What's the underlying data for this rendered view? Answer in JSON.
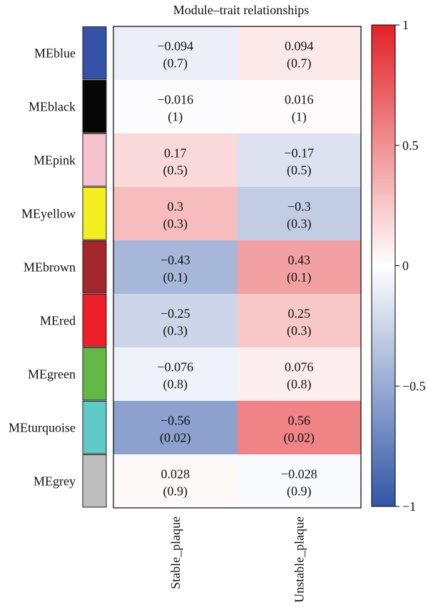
{
  "chart_data": {
    "type": "heatmap",
    "title": "Module–trait relationships",
    "columns": [
      "Stable_plaque",
      "Unstable_plaque"
    ],
    "rows": [
      {
        "label": "MEblue",
        "module_color": "#3452a6",
        "values": [
          -0.094,
          0.094
        ],
        "value_labels": [
          "−0.094",
          "0.094"
        ],
        "pvalue_labels": [
          "(0.7)",
          "(0.7)"
        ]
      },
      {
        "label": "MEblack",
        "module_color": "#060606",
        "values": [
          -0.016,
          0.016
        ],
        "value_labels": [
          "−0.016",
          "0.016"
        ],
        "pvalue_labels": [
          "(1)",
          "(1)"
        ]
      },
      {
        "label": "MEpink",
        "module_color": "#f7c2cf",
        "values": [
          0.17,
          -0.17
        ],
        "value_labels": [
          "0.17",
          "−0.17"
        ],
        "pvalue_labels": [
          "(0.5)",
          "(0.5)"
        ]
      },
      {
        "label": "MEyellow",
        "module_color": "#f2ee1f",
        "values": [
          0.3,
          -0.3
        ],
        "value_labels": [
          "0.3",
          "−0.3"
        ],
        "pvalue_labels": [
          "(0.3)",
          "(0.3)"
        ]
      },
      {
        "label": "MEbrown",
        "module_color": "#a2282d",
        "values": [
          -0.43,
          0.43
        ],
        "value_labels": [
          "−0.43",
          "0.43"
        ],
        "pvalue_labels": [
          "(0.1)",
          "(0.1)"
        ]
      },
      {
        "label": "MEred",
        "module_color": "#ec1f2b",
        "values": [
          -0.25,
          0.25
        ],
        "value_labels": [
          "−0.25",
          "0.25"
        ],
        "pvalue_labels": [
          "(0.3)",
          "(0.3)"
        ]
      },
      {
        "label": "MEgreen",
        "module_color": "#64b946",
        "values": [
          -0.076,
          0.076
        ],
        "value_labels": [
          "−0.076",
          "0.076"
        ],
        "pvalue_labels": [
          "(0.8)",
          "(0.8)"
        ]
      },
      {
        "label": "MEturquoise",
        "module_color": "#5fcac7",
        "values": [
          -0.56,
          0.56
        ],
        "value_labels": [
          "−0.56",
          "0.56"
        ],
        "pvalue_labels": [
          "(0.02)",
          "(0.02)"
        ]
      },
      {
        "label": "MEgrey",
        "module_color": "#bebebe",
        "values": [
          0.028,
          -0.028
        ],
        "value_labels": [
          "0.028",
          "−0.028"
        ],
        "pvalue_labels": [
          "(0.9)",
          "(0.9)"
        ]
      }
    ],
    "colorscale": {
      "min": -1,
      "max": 1,
      "low_color": "#3257a6",
      "mid_color": "#ffffff",
      "high_color": "#e32227",
      "ticks": [
        1,
        0.5,
        0,
        -0.5,
        -1
      ],
      "tick_labels": [
        "1",
        "0.5",
        "0",
        "−0.5",
        "−1"
      ]
    }
  }
}
